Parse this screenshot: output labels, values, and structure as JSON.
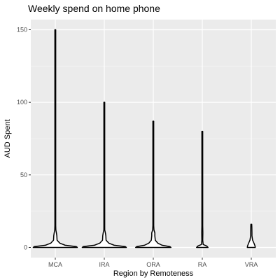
{
  "chart_data": {
    "type": "violin",
    "title": "Weekly spend on home phone",
    "xlabel": "Region by Remoteness",
    "ylabel": "AUD Spent",
    "categories": [
      "MCA",
      "IRA",
      "ORA",
      "RA",
      "VRA"
    ],
    "ylim": [
      -7,
      157
    ],
    "yticks": [
      0,
      50,
      100,
      150
    ],
    "grid": true,
    "legend": "none",
    "colors": {
      "panel": "#ebebeb",
      "grid_major": "#ffffff",
      "grid_minor": "#f5f5f5",
      "outline": "#000000",
      "fill": "#ffffff",
      "tick_label": "#4d4d4d"
    },
    "series": [
      {
        "category": "MCA",
        "max": 150,
        "profile": [
          [
            0,
            1.0
          ],
          [
            0.6,
            0.95
          ],
          [
            1.5,
            0.45
          ],
          [
            3,
            0.2
          ],
          [
            5,
            0.08
          ],
          [
            8,
            0.07
          ],
          [
            10,
            0.05
          ],
          [
            12,
            0.025
          ],
          [
            15,
            0.012
          ],
          [
            20,
            0.007
          ],
          [
            25,
            0.005
          ],
          [
            30,
            0.004
          ],
          [
            40,
            0.002
          ],
          [
            60,
            0.0025
          ],
          [
            80,
            0.0015
          ],
          [
            150,
            0.0015
          ]
        ]
      },
      {
        "category": "IRA",
        "max": 100,
        "profile": [
          [
            0,
            1.0
          ],
          [
            0.6,
            0.95
          ],
          [
            1.5,
            0.45
          ],
          [
            3,
            0.2
          ],
          [
            5,
            0.08
          ],
          [
            8,
            0.07
          ],
          [
            10,
            0.05
          ],
          [
            12,
            0.02
          ],
          [
            15,
            0.012
          ],
          [
            20,
            0.006
          ],
          [
            30,
            0.004
          ],
          [
            50,
            0.003
          ],
          [
            60,
            0.0015
          ],
          [
            80,
            0.002
          ],
          [
            100,
            0.0015
          ]
        ]
      },
      {
        "category": "ORA",
        "max": 87,
        "profile": [
          [
            0,
            0.8
          ],
          [
            0.6,
            0.75
          ],
          [
            1.5,
            0.4
          ],
          [
            3,
            0.2
          ],
          [
            5,
            0.09
          ],
          [
            8,
            0.07
          ],
          [
            10,
            0.07
          ],
          [
            12,
            0.03
          ],
          [
            15,
            0.015
          ],
          [
            20,
            0.008
          ],
          [
            30,
            0.005
          ],
          [
            40,
            0.003
          ],
          [
            60,
            0.0035
          ],
          [
            87,
            0.0015
          ]
        ]
      },
      {
        "category": "RA",
        "max": 80,
        "profile": [
          [
            0,
            0.26
          ],
          [
            1,
            0.2
          ],
          [
            2,
            0.04
          ],
          [
            5,
            0.02
          ],
          [
            10,
            0.025
          ],
          [
            15,
            0.012
          ],
          [
            25,
            0.02
          ],
          [
            30,
            0.012
          ],
          [
            50,
            0.006
          ],
          [
            70,
            0.004
          ],
          [
            80,
            0.002
          ]
        ]
      },
      {
        "category": "VRA",
        "max": 16,
        "profile": [
          [
            0,
            0.18
          ],
          [
            1,
            0.17
          ],
          [
            3,
            0.12
          ],
          [
            5,
            0.06
          ],
          [
            8,
            0.03
          ],
          [
            10,
            0.03
          ],
          [
            14,
            0.025
          ],
          [
            16,
            0.01
          ]
        ]
      }
    ]
  }
}
